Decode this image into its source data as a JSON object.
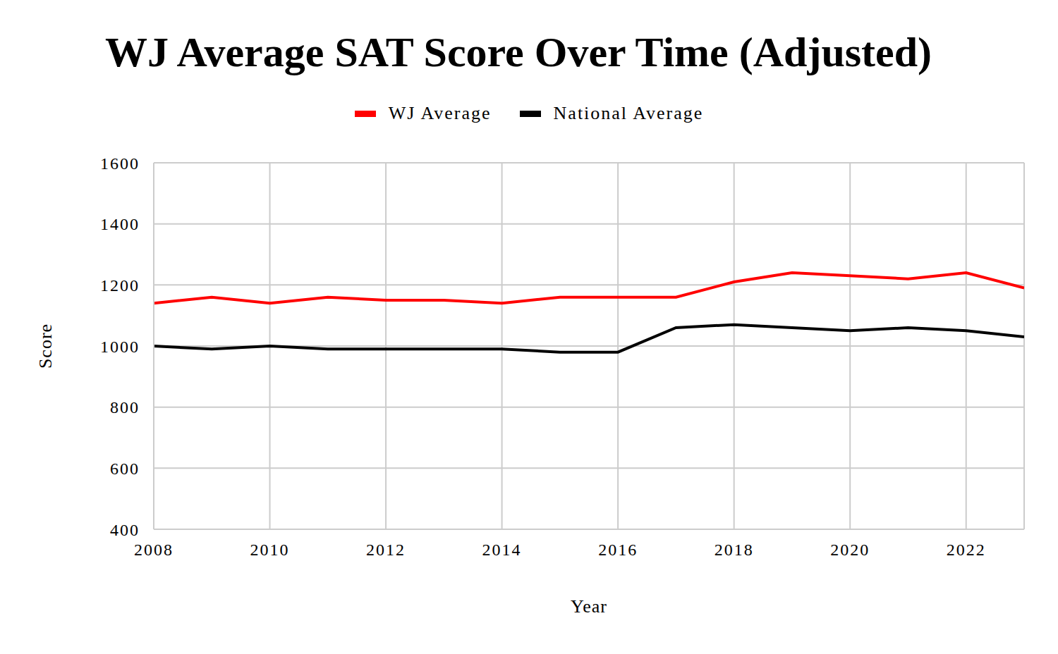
{
  "chart_data": {
    "type": "line",
    "title": "WJ Average SAT Score Over Time (Adjusted)",
    "x_label": "Year",
    "y_label": "Score",
    "x": [
      2008,
      2009,
      2010,
      2011,
      2012,
      2013,
      2014,
      2015,
      2016,
      2017,
      2018,
      2019,
      2020,
      2021,
      2022,
      2023
    ],
    "series": [
      {
        "name": "WJ Average",
        "color": "#ff0000",
        "values": [
          1140,
          1160,
          1140,
          1160,
          1150,
          1150,
          1140,
          1160,
          1160,
          1160,
          1210,
          1240,
          1230,
          1220,
          1240,
          1190
        ]
      },
      {
        "name": "National Average",
        "color": "#000000",
        "values": [
          1000,
          990,
          1000,
          990,
          990,
          990,
          990,
          980,
          980,
          1060,
          1070,
          1060,
          1050,
          1060,
          1050,
          1030
        ]
      }
    ],
    "xlim": [
      2008,
      2023
    ],
    "xticks": [
      2008,
      2010,
      2012,
      2014,
      2016,
      2018,
      2020,
      2022
    ],
    "ylim": [
      400,
      1600
    ],
    "yticks": [
      400,
      600,
      800,
      1000,
      1200,
      1400,
      1600
    ],
    "grid": true,
    "legend": "top"
  }
}
